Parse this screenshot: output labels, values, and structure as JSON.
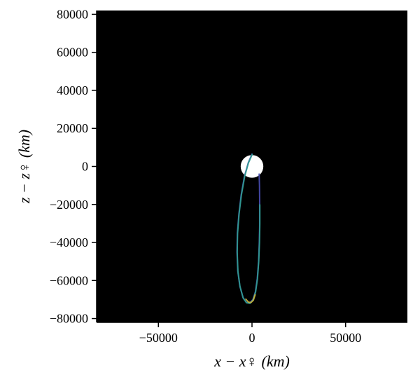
{
  "chart_data": {
    "type": "scatter",
    "title": "",
    "xlabel": "x − x♀ (km)",
    "ylabel": "z − z♀ (km)",
    "xlim": [
      -83000,
      83000
    ],
    "ylim": [
      -82000,
      82000
    ],
    "x_ticks": [
      -50000,
      0,
      50000
    ],
    "y_ticks": [
      80000,
      60000,
      40000,
      20000,
      0,
      -20000,
      -40000,
      -60000,
      -80000
    ],
    "x_tick_labels": [
      "−50000",
      "0",
      "50000"
    ],
    "y_tick_labels": [
      "80000",
      "60000",
      "40000",
      "20000",
      "0",
      "−20000",
      "−40000",
      "−60000",
      "−80000"
    ],
    "background": "#000000",
    "grid": false,
    "planet": {
      "label": "",
      "center": [
        0,
        0
      ],
      "radius_km": 6052,
      "color": "#ffffff"
    },
    "series": [
      {
        "color": "#4a4fb5",
        "points": [
          [
            0,
            6500
          ],
          [
            -2000,
            2000
          ],
          [
            -4000,
            -5000
          ],
          [
            -5800,
            -15000
          ],
          [
            -7000,
            -25000
          ],
          [
            -7800,
            -35000
          ],
          [
            -8000,
            -45000
          ],
          [
            -7600,
            -55000
          ],
          [
            -6500,
            -63000
          ],
          [
            -4800,
            -69000
          ],
          [
            -3000,
            -71500
          ],
          [
            -1200,
            -71800
          ],
          [
            500,
            -70000
          ],
          [
            1800,
            -66000
          ],
          [
            2800,
            -59000
          ],
          [
            3500,
            -50000
          ],
          [
            3900,
            -40000
          ],
          [
            4100,
            -30000
          ],
          [
            4100,
            -20000
          ],
          [
            4000,
            -10000
          ],
          [
            3800,
            -4000
          ]
        ]
      },
      {
        "color": "#2f9d8f",
        "points": [
          [
            100,
            6300
          ],
          [
            -1900,
            1800
          ],
          [
            -3900,
            -5200
          ],
          [
            -5700,
            -15200
          ],
          [
            -6900,
            -25200
          ],
          [
            -7700,
            -35200
          ],
          [
            -7900,
            -45200
          ],
          [
            -7500,
            -55200
          ],
          [
            -6400,
            -63200
          ],
          [
            -4700,
            -69200
          ],
          [
            -2900,
            -71700
          ],
          [
            -1100,
            -72000
          ],
          [
            600,
            -70200
          ],
          [
            1900,
            -66200
          ],
          [
            2900,
            -59200
          ],
          [
            3600,
            -50200
          ],
          [
            4000,
            -40200
          ],
          [
            4200,
            -30200
          ],
          [
            4200,
            -20200
          ]
        ]
      },
      {
        "color": "#c9b23a",
        "points": [
          [
            -3300,
            -69800
          ],
          [
            -2000,
            -71300
          ],
          [
            -600,
            -71600
          ],
          [
            700,
            -70400
          ],
          [
            1700,
            -67500
          ]
        ]
      }
    ]
  }
}
